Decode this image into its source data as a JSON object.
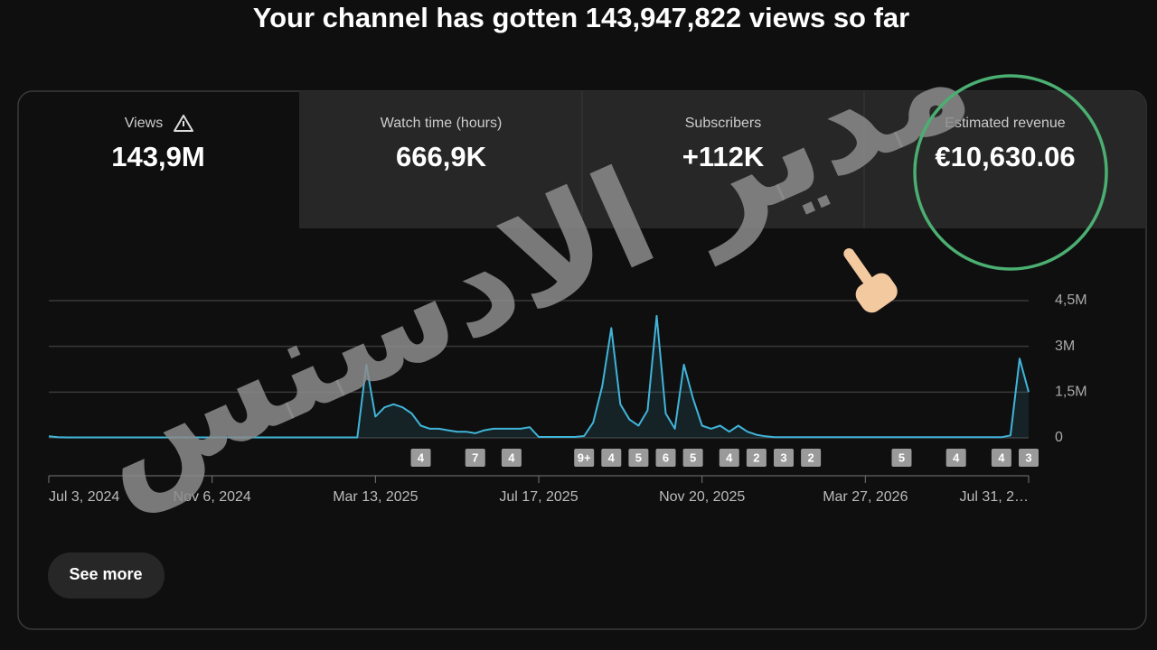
{
  "header": {
    "title": "Your channel has gotten 143,947,822 views so far"
  },
  "watermark": "مدير الادسنس",
  "metrics": [
    {
      "label": "Views",
      "value": "143,9M"
    },
    {
      "label": "Watch time (hours)",
      "value": "666,9K"
    },
    {
      "label": "Subscribers",
      "value": "+112K"
    },
    {
      "label": "Estimated revenue",
      "value": "€10,630.06"
    }
  ],
  "chart_data": {
    "type": "line",
    "categories": [
      "Jul 3, 2024",
      null,
      null,
      null,
      null,
      null,
      null,
      null,
      null,
      null,
      null,
      null,
      null,
      null,
      null,
      null,
      null,
      null,
      "Nov 6, 2024",
      null,
      null,
      null,
      null,
      null,
      null,
      null,
      null,
      null,
      null,
      null,
      null,
      null,
      null,
      null,
      null,
      null,
      "Mar 13, 2025",
      null,
      null,
      null,
      null,
      null,
      null,
      null,
      null,
      null,
      null,
      null,
      null,
      null,
      null,
      null,
      null,
      null,
      "Jul 17, 2025",
      null,
      null,
      null,
      null,
      null,
      null,
      null,
      null,
      null,
      null,
      null,
      null,
      null,
      null,
      null,
      null,
      null,
      "Nov 20, 2025",
      null,
      null,
      null,
      null,
      null,
      null,
      null,
      null,
      null,
      null,
      null,
      null,
      null,
      null,
      null,
      null,
      null,
      "Mar 27, 2026",
      null,
      null,
      null,
      null,
      null,
      null,
      null,
      null,
      null,
      null,
      null,
      null,
      null,
      null,
      null,
      null,
      null,
      "Jul 31, 2…"
    ],
    "series": [
      {
        "color": "#41b4d9",
        "values": [
          50000,
          20000,
          15000,
          15000,
          15000,
          15000,
          15000,
          15000,
          15000,
          15000,
          15000,
          15000,
          15000,
          15000,
          15000,
          15000,
          15000,
          15000,
          15000,
          15000,
          15000,
          15000,
          15000,
          15000,
          15000,
          15000,
          15000,
          15000,
          15000,
          15000,
          15000,
          15000,
          15000,
          15000,
          15000,
          2400000,
          700000,
          1000000,
          1100000,
          1000000,
          800000,
          400000,
          300000,
          300000,
          250000,
          200000,
          200000,
          150000,
          250000,
          300000,
          300000,
          300000,
          300000,
          350000,
          30000,
          30000,
          30000,
          30000,
          30000,
          60000,
          500000,
          1700000,
          3600000,
          1100000,
          600000,
          400000,
          900000,
          4000000,
          800000,
          300000,
          2400000,
          1300000,
          400000,
          300000,
          400000,
          200000,
          400000,
          200000,
          100000,
          50000,
          20000,
          20000,
          20000,
          20000,
          20000,
          20000,
          20000,
          20000,
          20000,
          20000,
          20000,
          20000,
          20000,
          20000,
          20000,
          20000,
          20000,
          20000,
          20000,
          20000,
          20000,
          20000,
          20000,
          20000,
          20000,
          20000,
          80000,
          2600000,
          1500000
        ]
      }
    ],
    "ylim": [
      0,
      4500000
    ],
    "yticks": [
      0,
      {
        "value": 1500000,
        "label": "1,5M"
      },
      {
        "value": 3000000,
        "label": "3M"
      },
      {
        "value": 4500000,
        "label": "4,5M"
      }
    ],
    "grid": true,
    "markers": [
      {
        "at": 41,
        "label": 4
      },
      {
        "at": 47,
        "label": 7
      },
      {
        "at": 51,
        "label": 4
      },
      {
        "at": 59,
        "label": "9+"
      },
      {
        "at": 62,
        "label": 4
      },
      {
        "at": 65,
        "label": 5
      },
      {
        "at": 68,
        "label": 6
      },
      {
        "at": 71,
        "label": 5
      },
      {
        "at": 75,
        "label": 4
      },
      {
        "at": 78,
        "label": 2
      },
      {
        "at": 81,
        "label": 3
      },
      {
        "at": 84,
        "label": 2
      },
      {
        "at": 94,
        "label": 5
      },
      {
        "at": 100,
        "label": 4
      },
      {
        "at": 105,
        "label": 4
      },
      {
        "at": 108,
        "label": 3
      }
    ]
  },
  "button": "See more"
}
